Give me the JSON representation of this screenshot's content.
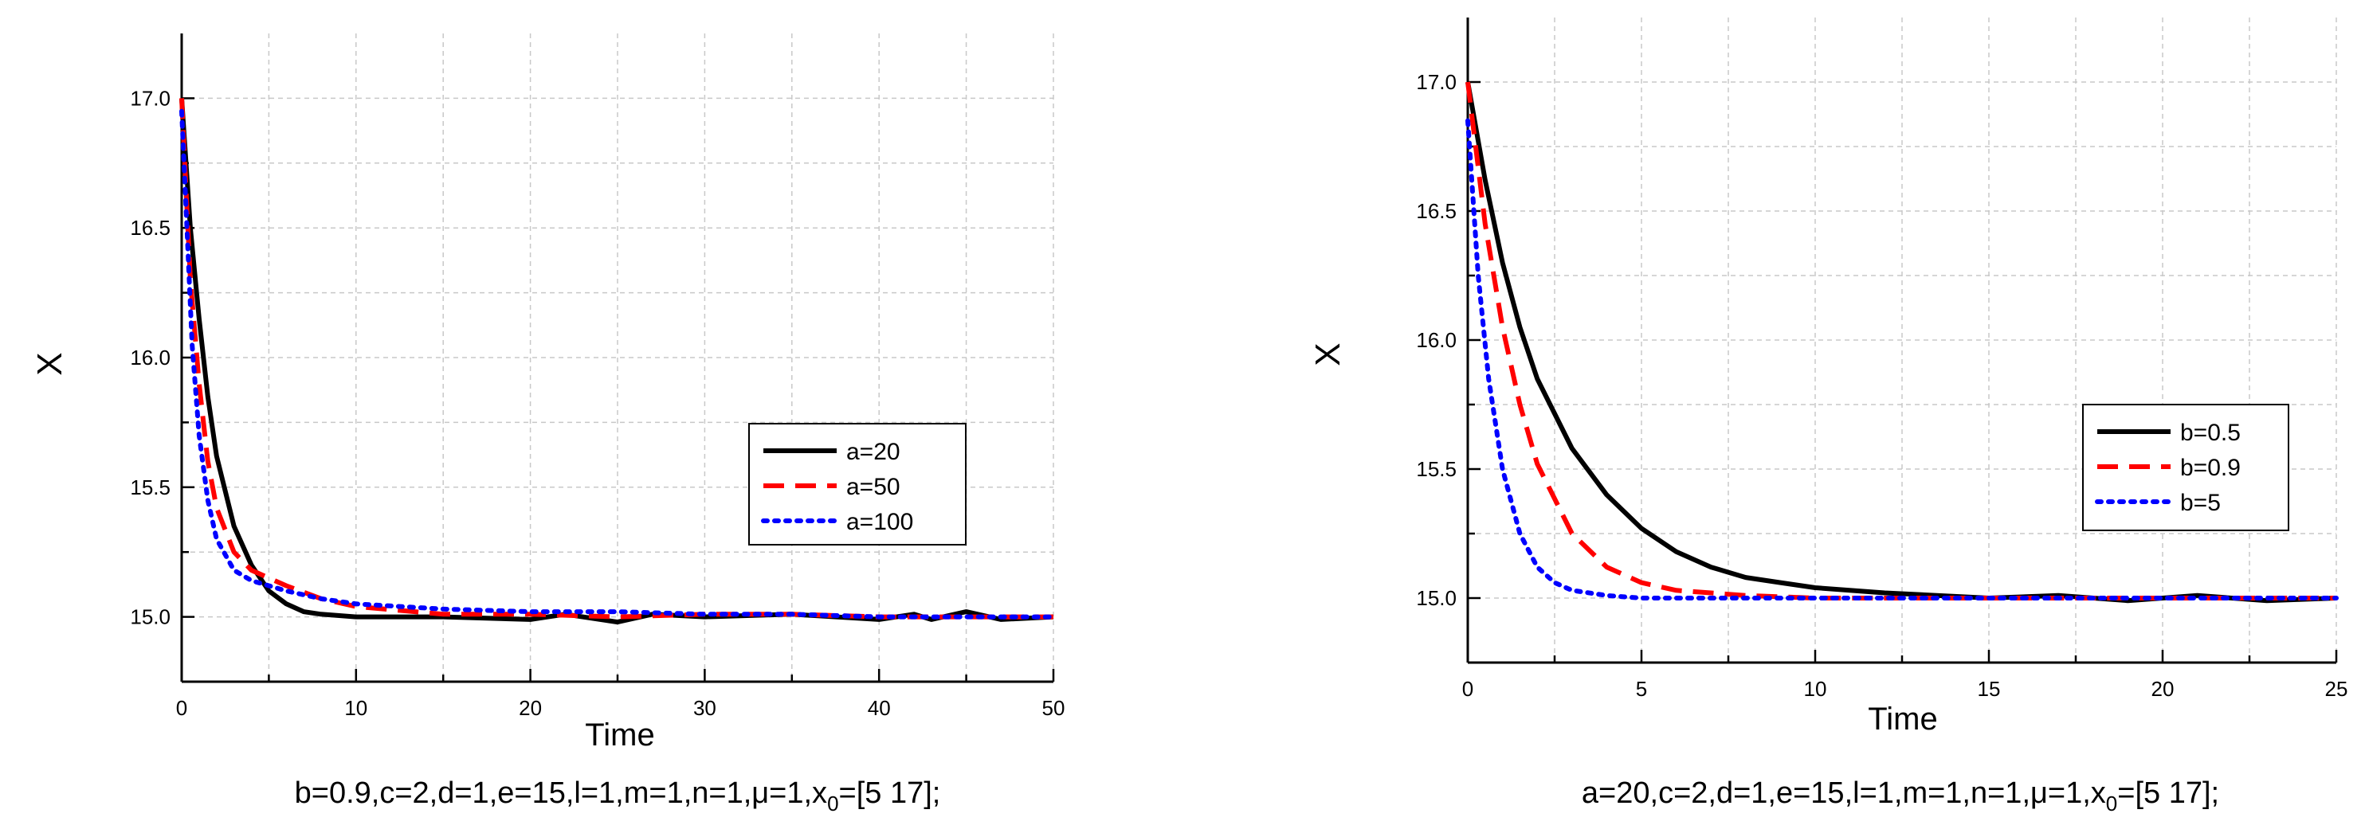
{
  "chart_data": [
    {
      "type": "line",
      "xlabel": "Time",
      "ylabel": "X",
      "xlim": [
        0,
        50
      ],
      "ylim": [
        14.75,
        17.25
      ],
      "xticks": [
        0,
        10,
        20,
        30,
        40,
        50
      ],
      "xtick_labels": [
        "0",
        "10",
        "20",
        "30",
        "40",
        "50"
      ],
      "yticks": [
        15.0,
        15.5,
        16.0,
        16.5,
        17.0
      ],
      "ytick_labels": [
        "15.0",
        "15.5",
        "16.0",
        "16.5",
        "17.0"
      ],
      "grid": true,
      "legend_position": "center-right",
      "caption": {
        "pre": "b=0.9,c=2,d=1,e=15,l=1,m=1,n=1,μ=1,x",
        "sub": "0",
        "post": "=[5 17];"
      },
      "series": [
        {
          "name": "a=20",
          "color": "#000000",
          "style": "solid",
          "x": [
            0,
            0.5,
            1,
            1.5,
            2,
            3,
            4,
            5,
            6,
            7,
            8,
            10,
            15,
            20,
            22,
            25,
            27,
            30,
            35,
            40,
            42,
            43,
            45,
            47,
            50
          ],
          "y": [
            17.0,
            16.5,
            16.15,
            15.85,
            15.62,
            15.35,
            15.2,
            15.1,
            15.05,
            15.02,
            15.01,
            15.0,
            15.0,
            14.99,
            15.01,
            14.98,
            15.01,
            15.0,
            15.01,
            14.99,
            15.01,
            14.99,
            15.02,
            14.99,
            15.0
          ]
        },
        {
          "name": "a=50",
          "color": "#ff0000",
          "style": "dash",
          "x": [
            0,
            0.5,
            1,
            1.5,
            2,
            3,
            4,
            5,
            6,
            8,
            10,
            15,
            20,
            25,
            30,
            35,
            40,
            45,
            50
          ],
          "y": [
            17.0,
            16.3,
            15.9,
            15.6,
            15.42,
            15.25,
            15.18,
            15.15,
            15.12,
            15.07,
            15.04,
            15.01,
            15.01,
            15.0,
            15.01,
            15.01,
            15.0,
            15.0,
            15.0
          ]
        },
        {
          "name": "a=100",
          "color": "#0000ff",
          "style": "dot",
          "x": [
            0,
            0.3,
            0.6,
            1,
            1.5,
            2,
            3,
            4,
            5,
            6,
            8,
            10,
            15,
            20,
            25,
            30,
            35,
            40,
            45,
            50
          ],
          "y": [
            16.95,
            16.5,
            16.05,
            15.7,
            15.45,
            15.3,
            15.18,
            15.14,
            15.12,
            15.1,
            15.07,
            15.05,
            15.03,
            15.02,
            15.02,
            15.01,
            15.01,
            15.0,
            15.0,
            15.0
          ]
        }
      ]
    },
    {
      "type": "line",
      "xlabel": "Time",
      "ylabel": "X",
      "xlim": [
        0,
        25
      ],
      "ylim": [
        14.75,
        17.25
      ],
      "xticks": [
        0,
        5,
        10,
        15,
        20,
        25
      ],
      "xtick_labels": [
        "0",
        "5",
        "10",
        "15",
        "20",
        "25"
      ],
      "yticks": [
        15.0,
        15.5,
        16.0,
        16.5,
        17.0
      ],
      "ytick_labels": [
        "15.0",
        "15.5",
        "16.0",
        "16.5",
        "17.0"
      ],
      "grid": true,
      "legend_position": "center-right",
      "caption": {
        "pre": "a=20,c=2,d=1,e=15,l=1,m=1,n=1,μ=1,x",
        "sub": "0",
        "post": "=[5 17];"
      },
      "series": [
        {
          "name": "b=0.5",
          "color": "#000000",
          "style": "solid",
          "x": [
            0,
            0.5,
            1,
            1.5,
            2,
            3,
            4,
            5,
            6,
            7,
            8,
            9,
            10,
            12,
            15,
            17,
            19,
            21,
            23,
            25
          ],
          "y": [
            17.0,
            16.62,
            16.3,
            16.05,
            15.85,
            15.58,
            15.4,
            15.27,
            15.18,
            15.12,
            15.08,
            15.06,
            15.04,
            15.02,
            15.0,
            15.01,
            14.99,
            15.01,
            14.99,
            15.0
          ]
        },
        {
          "name": "b=0.9",
          "color": "#ff0000",
          "style": "dash",
          "x": [
            0,
            0.5,
            1,
            1.5,
            2,
            3,
            4,
            5,
            6,
            8,
            10,
            15,
            20,
            25
          ],
          "y": [
            17.0,
            16.45,
            16.05,
            15.75,
            15.52,
            15.25,
            15.12,
            15.06,
            15.03,
            15.01,
            15.0,
            15.0,
            15.0,
            15.0
          ]
        },
        {
          "name": "b=5",
          "color": "#0000ff",
          "style": "dot",
          "x": [
            0,
            0.3,
            0.6,
            1,
            1.5,
            2,
            2.5,
            3,
            4,
            5,
            10,
            15,
            20,
            25
          ],
          "y": [
            16.85,
            16.25,
            15.85,
            15.5,
            15.25,
            15.12,
            15.06,
            15.03,
            15.01,
            15.0,
            15.0,
            15.0,
            15.0,
            15.0
          ]
        }
      ]
    }
  ]
}
